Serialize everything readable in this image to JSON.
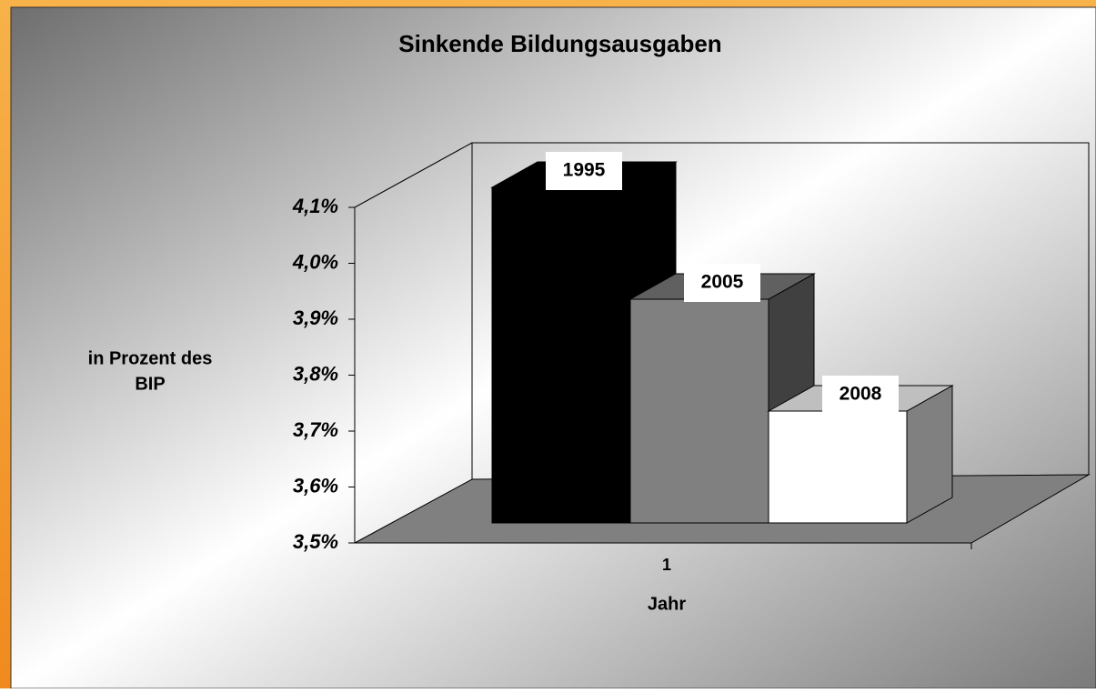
{
  "chart_data": {
    "type": "bar3d",
    "title": "Sinkende Bildungsausgaben",
    "y_label_lines": [
      "in Prozent des",
      "BIP"
    ],
    "x_label": "Jahr",
    "categories": [
      "1"
    ],
    "series": [
      {
        "name": "1995",
        "color": "#000000",
        "values": [
          4.1
        ]
      },
      {
        "name": "2005",
        "color": "#808080",
        "values": [
          3.9
        ]
      },
      {
        "name": "2008",
        "color": "#ffffff",
        "values": [
          3.7
        ]
      }
    ],
    "ylim": [
      3.5,
      4.1
    ],
    "yticks": [
      {
        "value": 3.5,
        "label": "3,5%"
      },
      {
        "value": 3.6,
        "label": "3,6%"
      },
      {
        "value": 3.7,
        "label": "3,7%"
      },
      {
        "value": 3.8,
        "label": "3,8%"
      },
      {
        "value": 3.9,
        "label": "3,9%"
      },
      {
        "value": 4.0,
        "label": "4,0%"
      },
      {
        "value": 4.1,
        "label": "4,1%"
      }
    ]
  }
}
